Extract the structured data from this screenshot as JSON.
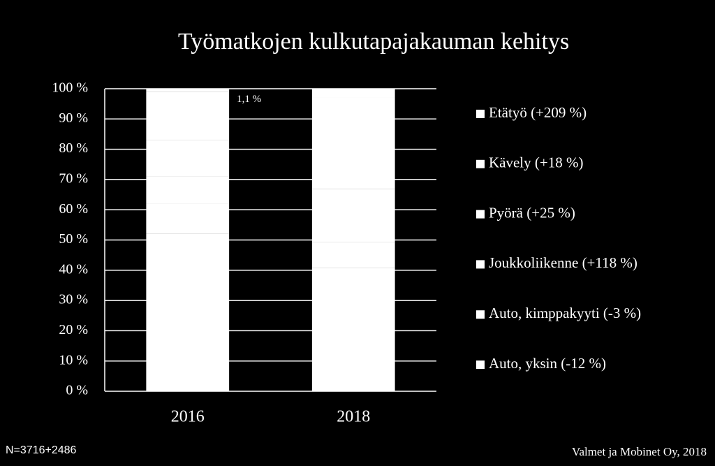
{
  "chart_data": {
    "type": "stacked_bar",
    "title": "Työmatkojen kulkutapajakauman kehitys",
    "categories": [
      "2016",
      "2018"
    ],
    "series": [
      {
        "name": "Auto, yksin (-12 %)",
        "color": "#ffffff",
        "values": [
          52,
          40.8
        ]
      },
      {
        "name": "Auto, kimppakyyti (-3 %)",
        "color": "#ffffff",
        "values": [
          10,
          8.6
        ]
      },
      {
        "name": "Joukkoliikenne (+118 %)",
        "color": "#ffffff",
        "values": [
          9,
          17.4
        ]
      },
      {
        "name": "Pyörä (+25 %)",
        "color": "#ffffff",
        "values": [
          12,
          13.3
        ]
      },
      {
        "name": "Kävely (+18 %)",
        "color": "#ffffff",
        "values": [
          15.9,
          16.9
        ]
      },
      {
        "name": "Etätyö (+209 %)",
        "color": "#ffffff",
        "values": [
          1.1,
          3.0
        ],
        "value_labels": [
          "1,1 %",
          null
        ]
      }
    ],
    "ylim": [
      0,
      100
    ],
    "yticks": [
      {
        "value": 0,
        "label": "0 %"
      },
      {
        "value": 10,
        "label": "10 %"
      },
      {
        "value": 20,
        "label": "20 %"
      },
      {
        "value": 30,
        "label": "30 %"
      },
      {
        "value": 40,
        "label": "40 %"
      },
      {
        "value": 50,
        "label": "50 %"
      },
      {
        "value": 60,
        "label": "60 %"
      },
      {
        "value": 70,
        "label": "70 %"
      },
      {
        "value": 80,
        "label": "80 %"
      },
      {
        "value": 90,
        "label": "90 %"
      },
      {
        "value": 100,
        "label": "100 %"
      }
    ],
    "grid": true,
    "legend": "right",
    "note_left": "N=3716+2486",
    "note_right": "Valmet ja Mobinet Oy, 2018"
  }
}
